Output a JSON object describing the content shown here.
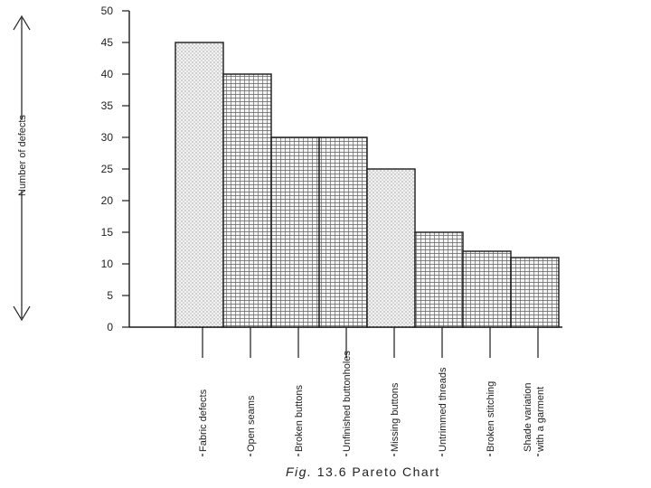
{
  "chart_data": {
    "type": "bar",
    "title": "",
    "xlabel": "",
    "ylabel": "Number of defects",
    "ylim": [
      0,
      50
    ],
    "yticks": [
      0,
      5,
      10,
      15,
      20,
      25,
      30,
      35,
      40,
      45,
      50
    ],
    "categories": [
      [
        "Fabric defects"
      ],
      [
        "Open seams"
      ],
      [
        "Broken buttons"
      ],
      [
        "Unfinished buttonholes"
      ],
      [
        "Missing buttons"
      ],
      [
        "Untrimmed threads"
      ],
      [
        "Broken stitching"
      ],
      [
        "Shade variation",
        "with a garment"
      ]
    ],
    "values": [
      45,
      40,
      30,
      30,
      25,
      15,
      12,
      11
    ],
    "grid": false,
    "legend": "none"
  },
  "caption": {
    "prefix": "Fig.",
    "text": "13.6 Pareto Chart"
  },
  "colors": {
    "ink": "#1a1a1a",
    "fill": "#f4f4f4"
  }
}
